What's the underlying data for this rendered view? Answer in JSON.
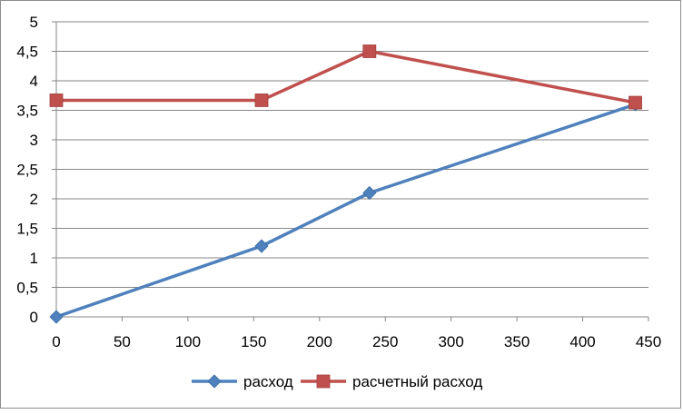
{
  "chart_data": {
    "type": "line",
    "title": "",
    "xlabel": "",
    "ylabel": "",
    "xlim": [
      0,
      450
    ],
    "ylim": [
      0,
      5
    ],
    "x_ticks": [
      0,
      50,
      100,
      150,
      200,
      250,
      300,
      350,
      400,
      450
    ],
    "x_tick_labels": [
      "0",
      "50",
      "100",
      "150",
      "200",
      "250",
      "300",
      "350",
      "400",
      "450"
    ],
    "y_ticks": [
      0,
      0.5,
      1,
      1.5,
      2,
      2.5,
      3,
      3.5,
      4,
      4.5,
      5
    ],
    "y_tick_labels": [
      "0",
      "0,5",
      "1",
      "1,5",
      "2",
      "2,5",
      "3",
      "3,5",
      "4",
      "4,5",
      "5"
    ],
    "grid": "horizontal",
    "legend": "bottom",
    "series": [
      {
        "name": "расход",
        "color": "#4f81bd",
        "marker": "diamond",
        "x": [
          0,
          156,
          238,
          440
        ],
        "values": [
          0,
          1.2,
          2.1,
          3.6
        ]
      },
      {
        "name": "расчетный расход",
        "color": "#c0504d",
        "marker": "square",
        "x": [
          0,
          156,
          238,
          440
        ],
        "values": [
          3.67,
          3.67,
          4.5,
          3.63
        ]
      }
    ]
  }
}
